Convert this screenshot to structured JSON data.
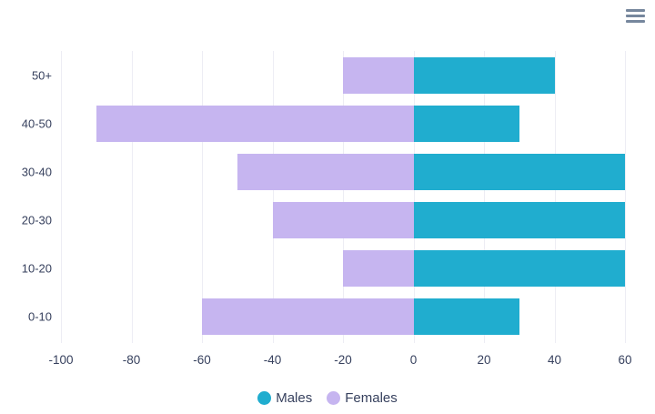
{
  "header": {
    "menu_icon": "hamburger-menu"
  },
  "chart_data": {
    "type": "bar",
    "orientation": "horizontal",
    "title": "",
    "xlabel": "",
    "ylabel": "",
    "categories_top_to_bottom": [
      "50+",
      "40-50",
      "30-40",
      "20-30",
      "10-20",
      "0-10"
    ],
    "series": [
      {
        "name": "Males",
        "color": "#20adcf",
        "values": [
          40,
          30,
          60,
          60,
          60,
          30
        ]
      },
      {
        "name": "Females",
        "color": "#c6b5f0",
        "values": [
          -20,
          -90,
          -50,
          -40,
          -20,
          -60
        ]
      }
    ],
    "xlim": [
      -100,
      60
    ],
    "xticks": [
      -100,
      -80,
      -60,
      -40,
      -20,
      0,
      20,
      40,
      60
    ],
    "grid": true,
    "gridline_color": "#ededf4",
    "axis_text_color": "#37415e",
    "legend_position": "bottom"
  }
}
